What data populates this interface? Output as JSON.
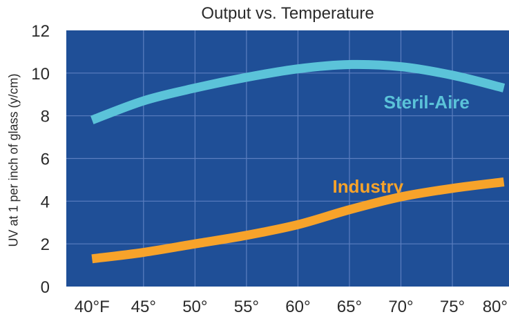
{
  "chart_data": {
    "type": "line",
    "title": "Output vs. Temperature",
    "xlabel": "",
    "ylabel": "UV at 1 per inch of glass (y/cm)",
    "x": [
      40,
      45,
      50,
      55,
      60,
      65,
      70,
      75,
      80
    ],
    "x_tick_labels": [
      "40°F",
      "45°",
      "50°",
      "55°",
      "60°",
      "65°",
      "70°",
      "75°",
      "80°"
    ],
    "xlim": [
      37.5,
      80.5
    ],
    "ylim": [
      0,
      12
    ],
    "y_ticks": [
      0,
      2,
      4,
      6,
      8,
      10,
      12
    ],
    "grid": true,
    "legend": "none",
    "series": [
      {
        "name": "Steril-Aire",
        "values": [
          7.8,
          8.7,
          9.3,
          9.8,
          10.2,
          10.4,
          10.3,
          9.9,
          9.3
        ],
        "color": "#5bc3d9"
      },
      {
        "name": "Industry",
        "values": [
          1.3,
          1.6,
          2.0,
          2.4,
          2.9,
          3.6,
          4.2,
          4.6,
          4.9
        ],
        "color": "#f7a32a"
      }
    ],
    "colors": {
      "plot_background": "#1f4f97",
      "grid": "#5c7fc0"
    }
  }
}
